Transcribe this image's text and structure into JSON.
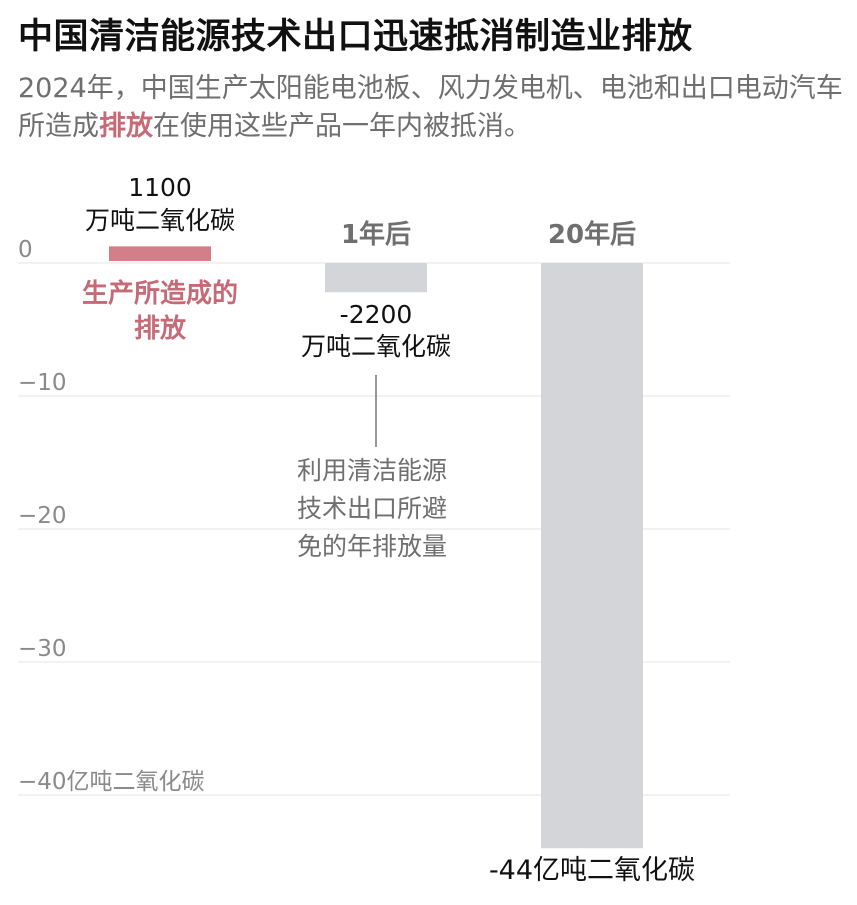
{
  "title": "中国清洁能源技术出口迅速抵消制造业排放",
  "subtitle": {
    "before": "2024年，中国生产太阳能电池板、风力发电机、电池和出口电动汽车所造成",
    "highlight": "排放",
    "after": "在使用这些产品一年内被抵消。"
  },
  "chart_data": {
    "type": "bar",
    "categories": [
      "生产所造成的排放",
      "1年后",
      "20年后"
    ],
    "values": [
      1100,
      -2200,
      -44000
    ],
    "value_unit": "万吨二氧化碳",
    "ylim": [
      -44000,
      1100
    ],
    "yticks": [
      0,
      -10000,
      -20000,
      -30000,
      -40000
    ],
    "ytick_labels": [
      "0",
      "−10",
      "−20",
      "−30",
      "−40亿吨二氧化碳"
    ],
    "grid": true,
    "colors": {
      "production": "#d27f88",
      "avoided": "#d4d5d9"
    },
    "data_labels": [
      {
        "line1": "1100",
        "line2": "万吨二氧化碳"
      },
      {
        "line1": "-2200",
        "line2": "万吨二氧化碳"
      },
      {
        "line1": "-44亿吨二氧化碳"
      }
    ],
    "column_headers": [
      "",
      "1年后",
      "20年后"
    ],
    "production_label": [
      "生产所造成的",
      "排放"
    ],
    "annotation": [
      "利用清洁能源",
      "技术出口所避",
      "免的年排放量"
    ]
  }
}
